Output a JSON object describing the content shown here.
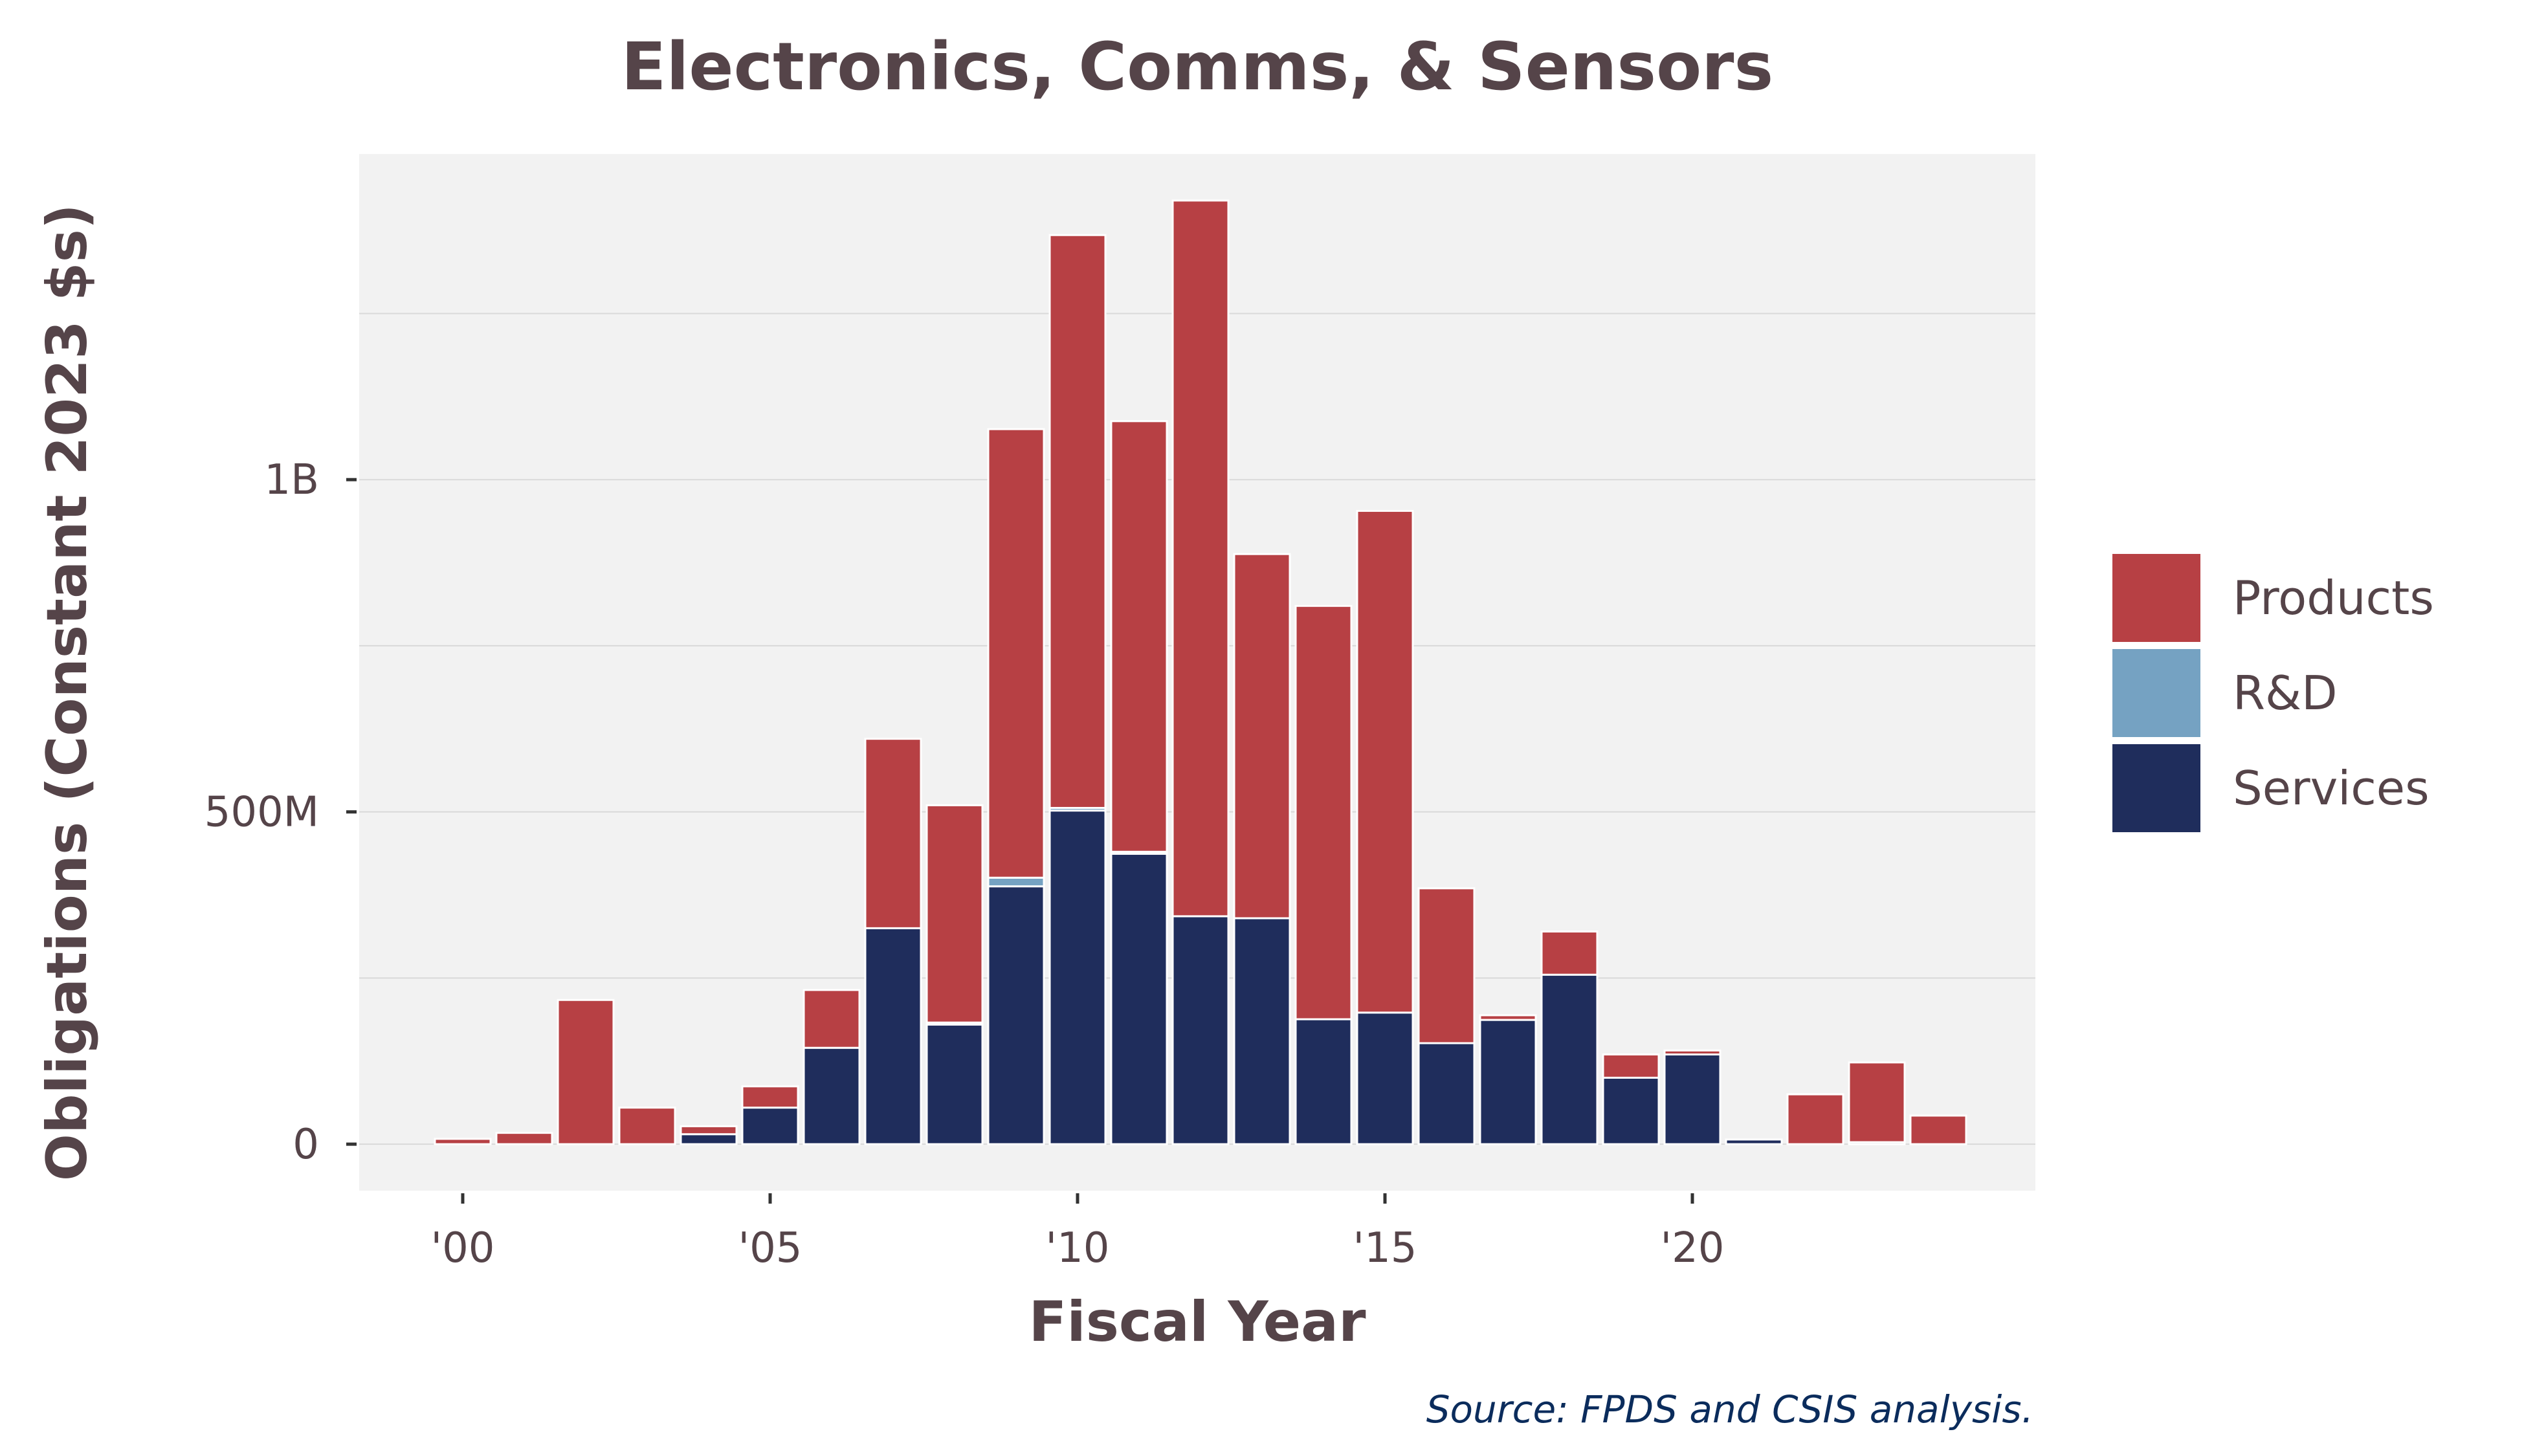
{
  "chart_data": {
    "type": "bar",
    "stacked": true,
    "title": "Electronics, Comms, & Sensors",
    "xlabel": "Fiscal Year",
    "ylabel": "Obligations (Constant 2023 $s)",
    "source": "Source: FPDS and CSIS analysis.",
    "x": [
      2000,
      2001,
      2002,
      2003,
      2004,
      2005,
      2006,
      2007,
      2008,
      2009,
      2010,
      2011,
      2012,
      2013,
      2014,
      2015,
      2016,
      2017,
      2018,
      2019,
      2020,
      2021,
      2022,
      2023,
      2024
    ],
    "x_tick_values": [
      2000,
      2005,
      2010,
      2015,
      2020
    ],
    "x_tick_labels": [
      "'00",
      "'05",
      "'10",
      "'15",
      "'20"
    ],
    "y_tick_values": [
      0,
      500000000,
      1000000000
    ],
    "y_tick_labels": [
      "0",
      "500M",
      "1B"
    ],
    "ylim": [
      -70000000,
      1490000000
    ],
    "grid": true,
    "legend_position": "right",
    "series": [
      {
        "name": "Services",
        "color": "#1f2d5c",
        "values": [
          0,
          0,
          0,
          0,
          15000000,
          55000000,
          145000000,
          325000000,
          180000000,
          388000000,
          502000000,
          437000000,
          343000000,
          340000000,
          188000000,
          198000000,
          152000000,
          187000000,
          255000000,
          100000000,
          135000000,
          7000000,
          0,
          3000000,
          0
        ]
      },
      {
        "name": "R&D",
        "color": "#75a2c2",
        "values": [
          0,
          0,
          0,
          0,
          0,
          0,
          0,
          0,
          3000000,
          13000000,
          4000000,
          3000000,
          0,
          0,
          0,
          0,
          0,
          0,
          0,
          0,
          0,
          0,
          0,
          0,
          0
        ]
      },
      {
        "name": "Products",
        "color": "#b74044",
        "values": [
          8000000,
          17000000,
          217000000,
          55000000,
          12000000,
          32000000,
          87000000,
          285000000,
          327000000,
          675000000,
          862000000,
          648000000,
          1077000000,
          548000000,
          622000000,
          755000000,
          233000000,
          7000000,
          65000000,
          35000000,
          6000000,
          0,
          75000000,
          120000000,
          43000000
        ]
      }
    ],
    "legend_order": [
      "Products",
      "R&D",
      "Services"
    ]
  }
}
